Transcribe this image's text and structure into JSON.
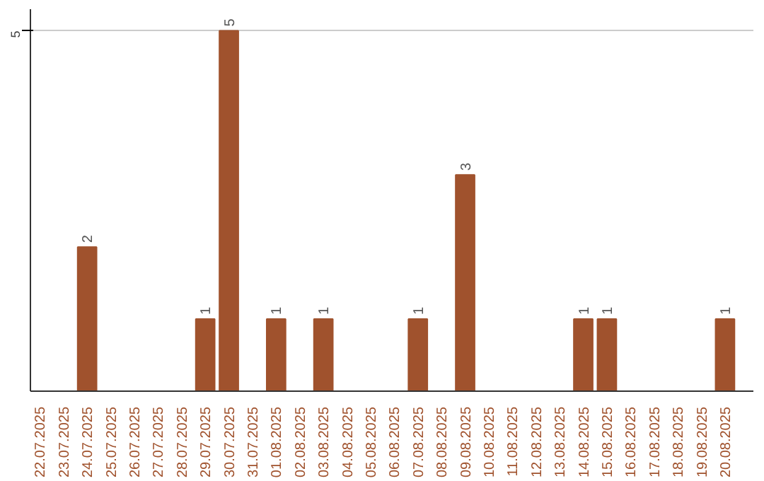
{
  "chart_data": {
    "type": "bar",
    "categories": [
      "22.07.2025",
      "23.07.2025",
      "24.07.2025",
      "25.07.2025",
      "26.07.2025",
      "27.07.2025",
      "28.07.2025",
      "29.07.2025",
      "30.07.2025",
      "31.07.2025",
      "01.08.2025",
      "02.08.2025",
      "03.08.2025",
      "04.08.2025",
      "05.08.2025",
      "06.08.2025",
      "07.08.2025",
      "08.08.2025",
      "09.08.2025",
      "10.08.2025",
      "11.08.2025",
      "12.08.2025",
      "13.08.2025",
      "14.08.2025",
      "15.08.2025",
      "16.08.2025",
      "17.08.2025",
      "18.08.2025",
      "19.08.2025",
      "20.08.2025"
    ],
    "values": [
      0,
      0,
      2,
      0,
      0,
      0,
      0,
      1,
      5,
      0,
      1,
      0,
      1,
      0,
      0,
      0,
      1,
      0,
      3,
      0,
      0,
      0,
      0,
      1,
      1,
      0,
      0,
      0,
      0,
      1
    ],
    "color": "#a0522d",
    "value_labels": [
      null,
      null,
      "2",
      null,
      null,
      null,
      null,
      "1",
      "5",
      null,
      "1",
      null,
      "1",
      null,
      null,
      null,
      "1",
      null,
      "3",
      null,
      null,
      null,
      null,
      "1",
      "1",
      null,
      null,
      null,
      null,
      "1"
    ],
    "ylim": [
      0,
      5.3
    ],
    "yticks": [
      5
    ],
    "grid": "y"
  }
}
